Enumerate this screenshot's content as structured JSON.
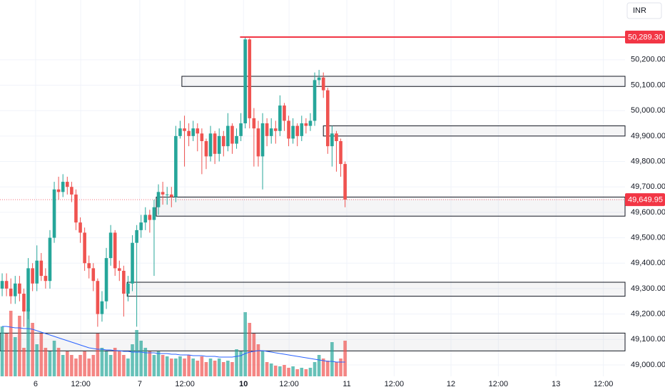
{
  "chart_data": {
    "type": "candlestick",
    "currency": "INR",
    "xlim": [
      -0.5,
      143.5
    ],
    "xticks": [
      {
        "value": 7.7,
        "label": "6"
      },
      {
        "value": 18.1,
        "label": "12:00"
      },
      {
        "value": 31.7,
        "label": "7"
      },
      {
        "value": 42.1,
        "label": "12:00"
      },
      {
        "value": 55.6,
        "label": "10"
      },
      {
        "value": 66.1,
        "label": "12:00"
      },
      {
        "value": 79.4,
        "label": "11"
      },
      {
        "value": 90.3,
        "label": "12:00"
      },
      {
        "value": 103.4,
        "label": "12"
      },
      {
        "value": 114.3,
        "label": "12:00"
      },
      {
        "value": 127.6,
        "label": "13"
      },
      {
        "value": 138.5,
        "label": "12:00"
      }
    ],
    "ylim": [
      48955,
      50435
    ],
    "yticks": [
      {
        "value": 49000,
        "label": "49,000.00"
      },
      {
        "value": 49100,
        "label": "49,100.00"
      },
      {
        "value": 49200,
        "label": "49,200.00"
      },
      {
        "value": 49300,
        "label": "49,300.00"
      },
      {
        "value": 49400,
        "label": "49,400.00"
      },
      {
        "value": 49500,
        "label": "49,500.00"
      },
      {
        "value": 49600,
        "label": "49,600.00"
      },
      {
        "value": 49700,
        "label": "49,700.00"
      },
      {
        "value": 49800,
        "label": "49,800.00"
      },
      {
        "value": 49900,
        "label": "49,900.00"
      },
      {
        "value": 50000,
        "label": "50,000.00"
      },
      {
        "value": 50100,
        "label": "50,100.00"
      },
      {
        "value": 50200,
        "label": "50,200.00"
      }
    ],
    "grid": true,
    "up_color": "#26a69a",
    "down_color": "#ef5350",
    "open": [
      49300,
      49330,
      49300,
      49270,
      49320,
      49280,
      49210,
      49380,
      49320,
      49410,
      49350,
      49330,
      49500,
      49690,
      49680,
      49720,
      49700,
      49670,
      49560,
      49520,
      49400,
      49380,
      49330,
      49200,
      49250,
      49420,
      49520,
      49380,
      49370,
      49280,
      49320,
      49480,
      49530,
      49560,
      49590,
      49570,
      49620,
      49680,
      49670,
      49670,
      49660,
      49900,
      49930,
      49920,
      49900,
      49930,
      49910,
      49880,
      49820,
      49910,
      49830,
      49900,
      49860,
      49940,
      49870,
      49900,
      49950,
      50280,
      49970,
      49930,
      49820,
      49950,
      49900,
      49930,
      49920,
      50020,
      49960,
      49890,
      49940,
      49900,
      49950,
      49940,
      49960,
      50120,
      50130,
      50080,
      49860,
      49910,
      49880,
      49790
    ],
    "high": [
      49360,
      49360,
      49340,
      49350,
      49350,
      49300,
      49420,
      49400,
      49470,
      49440,
      49380,
      49530,
      49720,
      49740,
      49750,
      49740,
      49720,
      49690,
      49580,
      49540,
      49430,
      49400,
      49340,
      49290,
      49460,
      49550,
      49530,
      49410,
      49390,
      49350,
      49510,
      49550,
      49590,
      49620,
      49610,
      49650,
      49710,
      49720,
      49700,
      49700,
      49940,
      49960,
      49980,
      49950,
      49960,
      49950,
      49930,
      49890,
      49940,
      49920,
      49930,
      49920,
      49990,
      49950,
      49930,
      49990,
      50289.3,
      50285,
      50010,
      49960,
      49990,
      49970,
      49970,
      49960,
      50060,
      50030,
      49980,
      49970,
      49950,
      49980,
      49970,
      49990,
      50150,
      50160,
      50150,
      50090,
      49940,
      49920,
      49890,
      49800
    ],
    "low": [
      49270,
      49270,
      49240,
      49240,
      49250,
      49150,
      49180,
      49290,
      49290,
      49330,
      49300,
      49300,
      49480,
      49650,
      49660,
      49670,
      49640,
      49530,
      49480,
      49370,
      49340,
      49290,
      49150,
      49170,
      49220,
      49390,
      49350,
      49330,
      49190,
      49250,
      49290,
      49150,
      49500,
      49530,
      49520,
      49350,
      49590,
      49630,
      49630,
      49620,
      49640,
      49890,
      49780,
      49860,
      49880,
      49840,
      49750,
      49770,
      49800,
      49790,
      49800,
      49820,
      49840,
      49830,
      49850,
      49880,
      49930,
      49930,
      49780,
      49780,
      49690,
      49860,
      49870,
      49870,
      49900,
      49920,
      49860,
      49870,
      49860,
      49880,
      49910,
      49920,
      49940,
      50100,
      50050,
      49830,
      49780,
      49760,
      49740,
      49620
    ],
    "close": [
      49330,
      49300,
      49270,
      49320,
      49280,
      49210,
      49380,
      49320,
      49410,
      49350,
      49330,
      49500,
      49690,
      49680,
      49720,
      49700,
      49670,
      49560,
      49520,
      49400,
      49380,
      49330,
      49200,
      49250,
      49420,
      49520,
      49380,
      49370,
      49280,
      49320,
      49480,
      49530,
      49560,
      49590,
      49570,
      49620,
      49680,
      49670,
      49670,
      49660,
      49900,
      49930,
      49920,
      49900,
      49930,
      49910,
      49880,
      49820,
      49910,
      49830,
      49900,
      49860,
      49940,
      49870,
      49900,
      49950,
      50280,
      49970,
      49930,
      49820,
      49950,
      49900,
      49930,
      49920,
      50020,
      49960,
      49890,
      49940,
      49900,
      49950,
      49940,
      49960,
      50120,
      50130,
      50080,
      49860,
      49910,
      49880,
      49790,
      49649.95
    ],
    "volume_lim": [
      0,
      100
    ],
    "volume": [
      70,
      60,
      92,
      55,
      85,
      40,
      95,
      75,
      45,
      60,
      40,
      35,
      50,
      40,
      30,
      35,
      30,
      25,
      30,
      35,
      25,
      30,
      60,
      40,
      35,
      30,
      40,
      35,
      30,
      25,
      45,
      65,
      50,
      40,
      35,
      30,
      35,
      30,
      28,
      25,
      25,
      28,
      25,
      30,
      25,
      22,
      28,
      20,
      25,
      22,
      25,
      20,
      22,
      20,
      38,
      35,
      90,
      75,
      60,
      45,
      35,
      20,
      18,
      15,
      14,
      16,
      12,
      14,
      10,
      12,
      10,
      12,
      20,
      30,
      25,
      22,
      48,
      20,
      25,
      50
    ],
    "volume_ma": {
      "color": "#2962ff",
      "values": [
        70,
        70,
        69,
        68,
        68,
        67,
        67,
        66,
        64,
        62,
        60,
        58,
        56,
        54,
        52,
        50,
        48,
        46,
        44,
        42,
        40,
        39,
        38,
        38,
        37,
        37,
        36,
        36,
        35,
        35,
        34,
        34,
        34,
        33,
        33,
        33,
        32,
        32,
        32,
        31,
        31,
        30,
        30,
        30,
        29,
        29,
        29,
        28,
        28,
        28,
        27,
        27,
        27,
        27,
        28,
        29,
        32,
        34,
        35,
        36,
        36,
        35,
        34,
        33,
        32,
        31,
        30,
        29,
        28,
        27,
        26,
        25,
        24,
        23,
        22,
        21,
        21,
        20,
        20,
        20
      ]
    },
    "zones": [
      {
        "start": 41.4,
        "low": 50095,
        "high": 50135
      },
      {
        "start": 74,
        "low": 49900,
        "high": 49940
      },
      {
        "start": 35.5,
        "low": 49585,
        "high": 49660
      },
      {
        "start": 28.8,
        "low": 49270,
        "high": 49325
      },
      {
        "start": -0.5,
        "low": 49055,
        "high": 49125
      }
    ],
    "high_line": {
      "value": 50289.3,
      "label": "50,289.30",
      "start": 54.8,
      "color": "#f23645"
    },
    "last_price": {
      "value": 49649.95,
      "label": "49,649.95",
      "color": "#f23645"
    }
  }
}
